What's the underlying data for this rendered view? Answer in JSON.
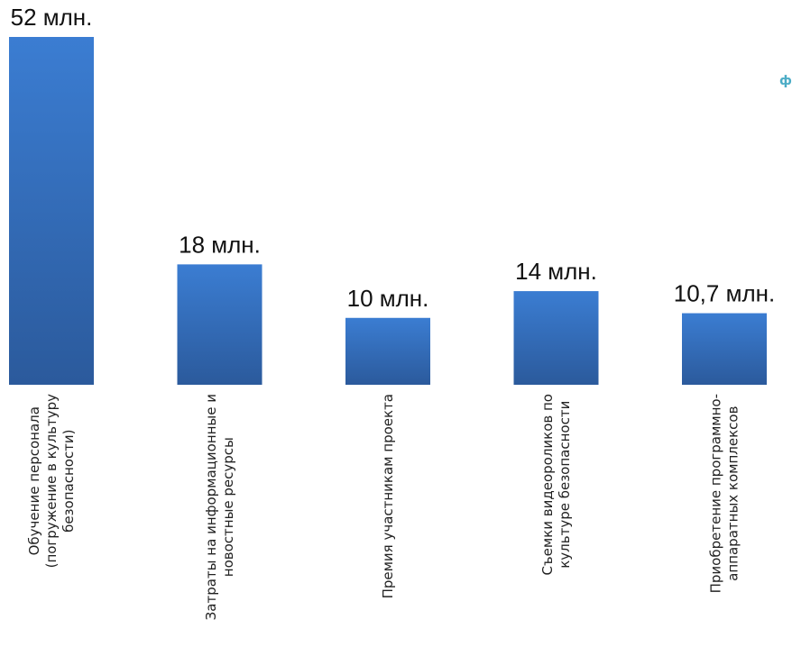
{
  "chart_data": {
    "type": "bar",
    "categories": [
      [
        "Обучение персонала",
        "(погружение в культуру",
        "безопасности)"
      ],
      [
        "Затраты на информационные и",
        "новостные ресурсы"
      ],
      [
        "Премия участникам проекта"
      ],
      [
        "Съемки видеороликов по",
        "культуре безопасности"
      ],
      [
        "Приобретение программно-",
        "аппаратных комплексов"
      ]
    ],
    "values": [
      52,
      18,
      10,
      14,
      10.7
    ],
    "value_labels": [
      "52 млн.",
      "18 млн.",
      "10 млн.",
      "14 млн.",
      "10,7 млн."
    ],
    "ylim": [
      0,
      52
    ],
    "grid": false,
    "legend": "none",
    "bar_color_top": "#3B7DD2",
    "bar_color_bottom": "#2B5A9C"
  },
  "edge_fragment": {
    "text": "ф",
    "color": "#4BACC6"
  }
}
